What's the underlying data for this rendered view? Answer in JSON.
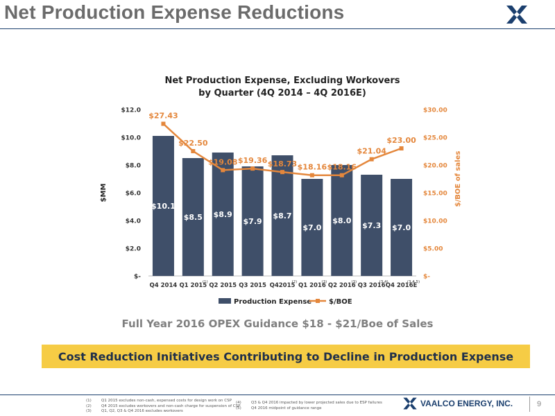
{
  "page": {
    "title": "Net Production Expense Reductions",
    "guidance": "Full Year 2016 OPEX Guidance $18 - $21/Boe of Sales",
    "banner": "Cost Reduction Initiatives Contributing to Decline in Production Expense",
    "company": "VAALCO ENERGY, INC.",
    "page_number": "9"
  },
  "colors": {
    "bar": "#3f4f69",
    "line": "#e4873c",
    "banner": "#f6cc45",
    "brand": "#1b3f6e"
  },
  "footnotes": {
    "left": [
      {
        "num": "(1)",
        "text": "Q1 2015 excludes non-cash, expensed costs for design work on CSP"
      },
      {
        "num": "(2)",
        "text": "Q4 2015 excludes workovers and non-cash charge for suspension of CSP"
      },
      {
        "num": "(3)",
        "text": "Q1, Q2, Q3 & Q4 2016 excludes workovers"
      }
    ],
    "right": [
      {
        "num": "(4)",
        "text": "Q3 & Q4 2016 impacted by lower projected sales due to ESP failures"
      },
      {
        "num": "(5)",
        "text": "Q4 2016 midpoint of guidance range"
      }
    ]
  },
  "chart_data": {
    "type": "bar",
    "title": [
      "Net Production Expense, Excluding Workovers",
      "by Quarter (4Q 2014 – 4Q 2016E)"
    ],
    "categories": [
      "Q4 2014",
      "Q1 2015",
      "Q2 2015",
      "Q3 2015",
      "Q42015",
      "Q1 2016",
      "Q2 2016",
      "Q3 2016",
      "Q4 2016E"
    ],
    "footnote_marks": [
      "",
      "(1)",
      "",
      "",
      "(2)",
      "(3)",
      "(3)",
      "(3,4)",
      "(3,4,5)"
    ],
    "series": [
      {
        "name": "Production Expense",
        "type": "bar",
        "axis": "left",
        "values": [
          10.1,
          8.5,
          8.9,
          7.9,
          8.7,
          7.0,
          8.0,
          7.3,
          7.0
        ],
        "labels": [
          "$10.1",
          "$8.5",
          "$8.9",
          "$7.9",
          "$8.7",
          "$7.0",
          "$8.0",
          "$7.3",
          "$7.0"
        ]
      },
      {
        "name": "$/BOE",
        "type": "line",
        "axis": "right",
        "values": [
          27.43,
          22.5,
          19.08,
          19.36,
          18.73,
          18.16,
          18.16,
          21.04,
          23.0
        ],
        "labels": [
          "$27.43",
          "$22.50",
          "$19.08",
          "$19.36",
          "$18.73",
          "$18.16",
          "$18.16",
          "$21.04",
          "$23.00"
        ]
      }
    ],
    "ylabel": "$MM",
    "y2label": "$/BOE of sales",
    "ylim": [
      0,
      12
    ],
    "y2lim": [
      0,
      30
    ],
    "yticks": [
      "$-",
      "$2.0",
      "$4.0",
      "$6.0",
      "$8.0",
      "$10.0",
      "$12.0"
    ],
    "y2ticks": [
      "$-",
      "$5.00",
      "$10.00",
      "$15.00",
      "$20.00",
      "$25.00",
      "$30.00"
    ],
    "legend": "bottom",
    "grid": false
  }
}
